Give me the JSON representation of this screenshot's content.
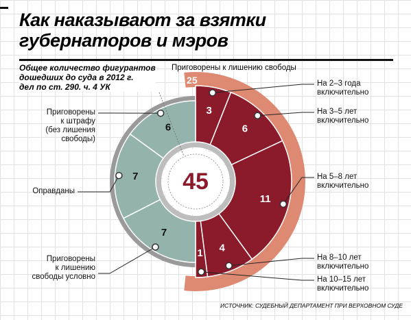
{
  "chart_data": {
    "type": "donut",
    "title": "Как  наказывают за взятки\nгубернаторов и мэров",
    "subtitle": "Общее количество фигурантов\nдошедших до суда в 2012 г.\nдел по ст. 290. ч. 4 УК",
    "total": 45,
    "groups": [
      {
        "name": "Приговорены к лишению свободы",
        "value": 25,
        "color": "#de8a73",
        "items": [
          {
            "label": "На 2–3 года\nвключительно",
            "value": 3,
            "color": "#8b1a2b"
          },
          {
            "label": "На 3–5 лет\nвключительно",
            "value": 6,
            "color": "#8b1a2b"
          },
          {
            "label": "На 5–8 лет\nвключительно",
            "value": 11,
            "color": "#8b1a2b"
          },
          {
            "label": "На 8–10 лет\nвключительно",
            "value": 4,
            "color": "#8b1a2b"
          },
          {
            "label": "На 10–15 лет\nвключительно",
            "value": 1,
            "color": "#8b1a2b"
          }
        ]
      },
      {
        "items": [
          {
            "label": "Приговорены\nк лишению\nсвободы условно",
            "value": 7,
            "color": "#94b3ad"
          },
          {
            "label": "Оправданы",
            "value": 7,
            "color": "#94b3ad"
          },
          {
            "label": "Приговорены\nк штрафу\n(без лишения\nсвободы)",
            "value": 6,
            "color": "#94b3ad"
          }
        ]
      }
    ],
    "source": "ИСТОЧНИК: СУДЕБНЫЙ ДЕПАРТАМЕНТ ПРИ ВЕРХОВНОМ СУДЕ"
  }
}
